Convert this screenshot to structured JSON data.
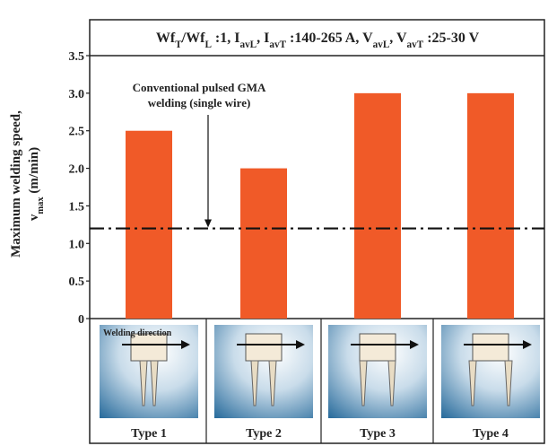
{
  "chart_data": {
    "type": "bar",
    "title": [
      {
        "text": "Wf",
        "sub": false
      },
      {
        "text": "T",
        "sub": true
      },
      {
        "text": "/Wf",
        "sub": false
      },
      {
        "text": "L",
        "sub": true
      },
      {
        "text": " :1, I",
        "sub": false
      },
      {
        "text": "avL",
        "sub": true
      },
      {
        "text": ", I",
        "sub": false
      },
      {
        "text": "avT",
        "sub": true
      },
      {
        "text": " :140-265 A, V",
        "sub": false
      },
      {
        "text": "avL",
        "sub": true
      },
      {
        "text": ", V",
        "sub": false
      },
      {
        "text": "avT",
        "sub": true
      },
      {
        "text": " :25-30 V",
        "sub": false
      }
    ],
    "y_label": [
      [
        {
          "text": "Maximum welding speed,",
          "sub": false
        }
      ],
      [
        {
          "text": "v",
          "sub": false
        },
        {
          "text": "max",
          "sub": true
        },
        {
          "text": " (m/min)",
          "sub": false
        }
      ]
    ],
    "categories": [
      "Type 1",
      "Type 2",
      "Type 3",
      "Type 4"
    ],
    "values": [
      2.5,
      2.0,
      3.0,
      3.0
    ],
    "color": "#f05a28",
    "ylim": [
      0,
      3.5
    ],
    "yticks": [
      0,
      0.5,
      {
        "value": 1,
        "label": "1.0"
      },
      1.5,
      {
        "value": 2,
        "label": "2.0"
      },
      2.5,
      {
        "value": 3,
        "label": "3.0"
      },
      3.5
    ],
    "reference_line": 1.2,
    "annotation": [
      "Conventional pulsed GMA",
      "welding (single wire)"
    ],
    "image_label": "Welding direction"
  }
}
